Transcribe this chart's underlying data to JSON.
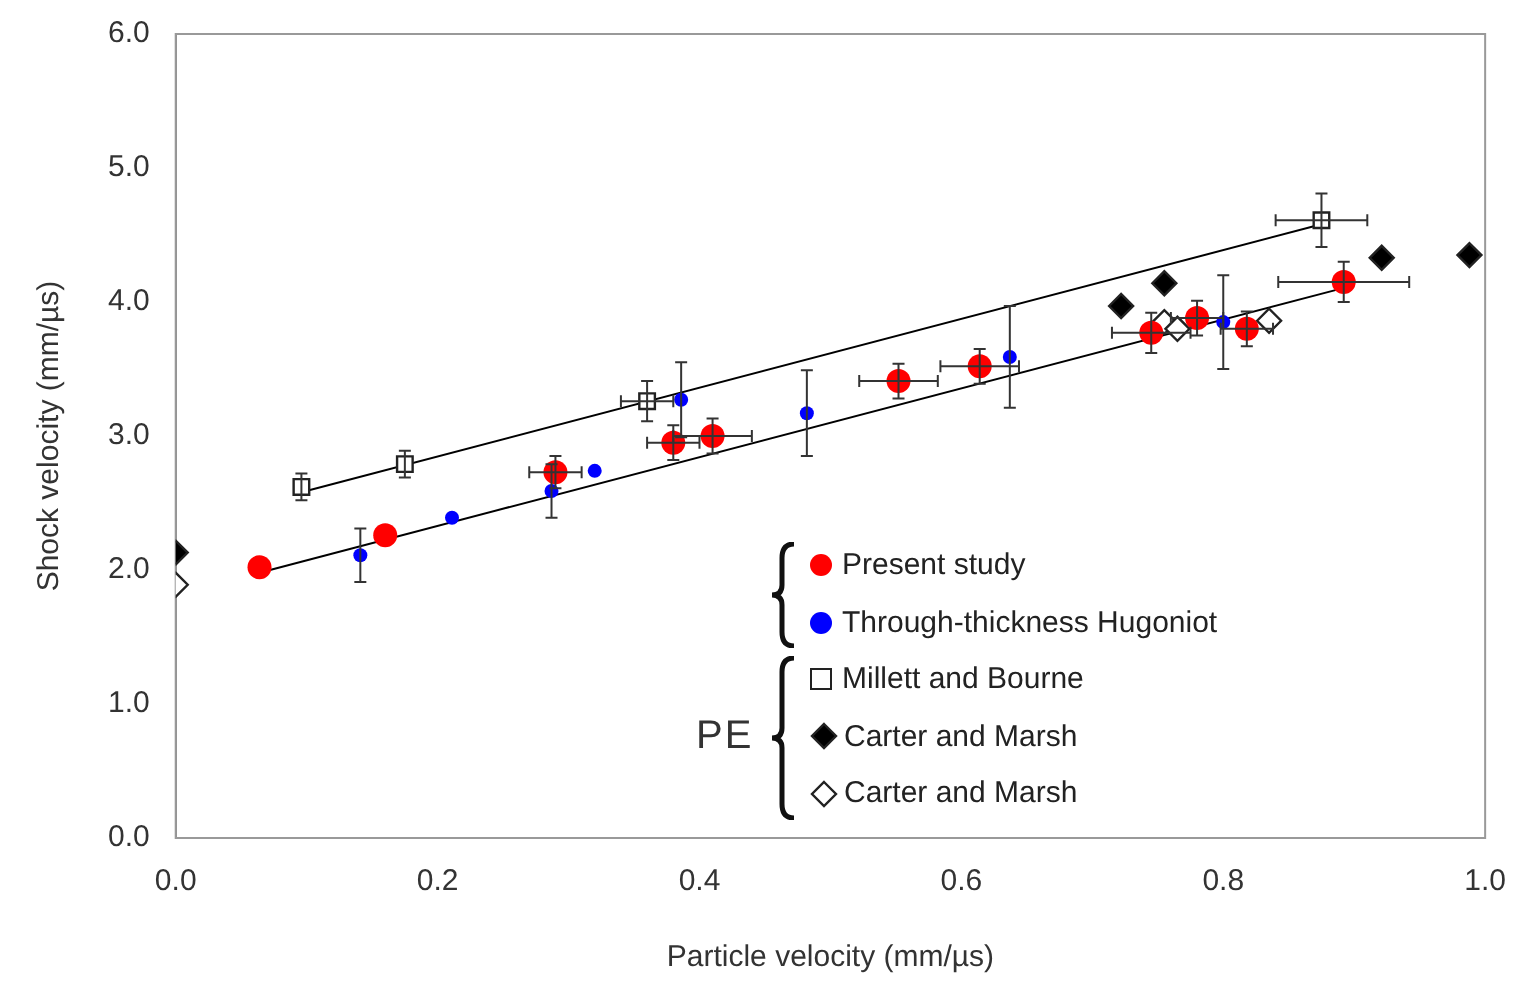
{
  "chart_data": {
    "type": "scatter",
    "xlabel": "Particle velocity (mm/µs)",
    "ylabel": "Shock velocity (mm/µs)",
    "xlim": [
      0,
      1
    ],
    "xticks": [
      {
        "value": 0,
        "label": "0.0"
      },
      0.2,
      0.4,
      0.6,
      0.8,
      {
        "value": 1,
        "label": "1.0"
      }
    ],
    "ylim": [
      0,
      6
    ],
    "yticks": [
      {
        "value": 0,
        "label": "0.0"
      },
      {
        "value": 1,
        "label": "1.0"
      },
      {
        "value": 2,
        "label": "2.0"
      },
      {
        "value": 3,
        "label": "3.0"
      },
      {
        "value": 4,
        "label": "4.0"
      },
      {
        "value": 5,
        "label": "5.0"
      },
      {
        "value": 6,
        "label": "6.0"
      }
    ],
    "grid": false,
    "legend": "bottom right",
    "annotations": [
      "PE"
    ],
    "series": [
      {
        "type": "line",
        "color": "#000000",
        "marker": "none",
        "x": [
          0.064,
          0.89
        ],
        "values": [
          1.98,
          4.1
        ]
      },
      {
        "type": "line",
        "color": "#000000",
        "marker": "none",
        "x": [
          0.096,
          0.875
        ],
        "values": [
          2.58,
          4.58
        ]
      },
      {
        "name": "Present study",
        "color": "#ff0000",
        "marker": "circle",
        "x": [
          0.064,
          0.16,
          0.29,
          0.38,
          0.41,
          0.552,
          0.614,
          0.745,
          0.78,
          0.818,
          0.892
        ],
        "values": [
          2.02,
          2.26,
          2.73,
          2.95,
          3.0,
          3.41,
          3.52,
          3.77,
          3.88,
          3.8,
          4.15
        ],
        "errors": [
          null,
          null,
          0.12,
          0.13,
          0.13,
          0.13,
          0.13,
          0.15,
          0.13,
          0.13,
          0.15
        ],
        "xerrors": [
          null,
          null,
          0.02,
          0.02,
          0.03,
          0.03,
          0.03,
          0.03,
          0.02,
          0.02,
          0.05
        ]
      },
      {
        "name": "Through-thickness Hugoniot",
        "color": "#0000ff",
        "marker": "circle",
        "x": [
          0.141,
          0.211,
          0.287,
          0.32,
          0.386,
          0.482,
          0.637,
          0.8
        ],
        "values": [
          2.11,
          2.39,
          2.59,
          2.74,
          3.27,
          3.17,
          3.59,
          3.85
        ],
        "errors": [
          0.2,
          null,
          0.2,
          null,
          0.28,
          0.32,
          0.38,
          0.35
        ]
      },
      {
        "name": "Millett and Bourne",
        "color": "#ffffff",
        "marker": "square",
        "x": [
          0.096,
          0.175,
          0.36,
          0.875
        ],
        "values": [
          2.62,
          2.79,
          3.26,
          4.61
        ],
        "errors": [
          0.1,
          0.1,
          0.15,
          0.2
        ],
        "xerrors": [
          null,
          null,
          0.02,
          0.035
        ]
      },
      {
        "name": "Carter and Marsh",
        "color": "#000000",
        "marker": "diamond",
        "x": [
          0,
          0.722,
          0.755,
          0.921,
          0.988
        ],
        "values": [
          2.13,
          3.97,
          4.14,
          4.33,
          4.35
        ]
      },
      {
        "name": "Carter and Marsh",
        "color": "#ffffff",
        "marker": "diamond",
        "x": [
          0,
          0.755,
          0.765,
          0.835
        ],
        "values": [
          1.89,
          3.85,
          3.8,
          3.86
        ]
      }
    ]
  }
}
